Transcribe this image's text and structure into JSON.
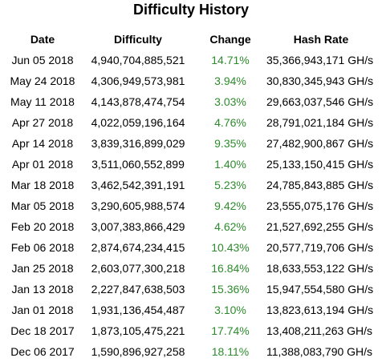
{
  "title": "Difficulty History",
  "columns": {
    "date": "Date",
    "difficulty": "Difficulty",
    "change": "Change",
    "hash_rate": "Hash Rate"
  },
  "colors": {
    "change_positive": "#2e8b2e"
  },
  "rows": [
    {
      "date": "Jun 05 2018",
      "difficulty": "4,940,704,885,521",
      "change": "14.71%",
      "hash_rate": "35,366,943,171 GH/s"
    },
    {
      "date": "May 24 2018",
      "difficulty": "4,306,949,573,981",
      "change": "3.94%",
      "hash_rate": "30,830,345,943 GH/s"
    },
    {
      "date": "May 11 2018",
      "difficulty": "4,143,878,474,754",
      "change": "3.03%",
      "hash_rate": "29,663,037,546 GH/s"
    },
    {
      "date": "Apr 27 2018",
      "difficulty": "4,022,059,196,164",
      "change": "4.76%",
      "hash_rate": "28,791,021,184 GH/s"
    },
    {
      "date": "Apr 14 2018",
      "difficulty": "3,839,316,899,029",
      "change": "9.35%",
      "hash_rate": "27,482,900,867 GH/s"
    },
    {
      "date": "Apr 01 2018",
      "difficulty": "3,511,060,552,899",
      "change": "1.40%",
      "hash_rate": "25,133,150,415 GH/s"
    },
    {
      "date": "Mar 18 2018",
      "difficulty": "3,462,542,391,191",
      "change": "5.23%",
      "hash_rate": "24,785,843,885 GH/s"
    },
    {
      "date": "Mar 05 2018",
      "difficulty": "3,290,605,988,574",
      "change": "9.42%",
      "hash_rate": "23,555,075,176 GH/s"
    },
    {
      "date": "Feb 20 2018",
      "difficulty": "3,007,383,866,429",
      "change": "4.62%",
      "hash_rate": "21,527,692,255 GH/s"
    },
    {
      "date": "Feb 06 2018",
      "difficulty": "2,874,674,234,415",
      "change": "10.43%",
      "hash_rate": "20,577,719,706 GH/s"
    },
    {
      "date": "Jan 25 2018",
      "difficulty": "2,603,077,300,218",
      "change": "16.84%",
      "hash_rate": "18,633,553,122 GH/s"
    },
    {
      "date": "Jan 13 2018",
      "difficulty": "2,227,847,638,503",
      "change": "15.36%",
      "hash_rate": "15,947,554,580 GH/s"
    },
    {
      "date": "Jan 01 2018",
      "difficulty": "1,931,136,454,487",
      "change": "3.10%",
      "hash_rate": "13,823,613,194 GH/s"
    },
    {
      "date": "Dec 18 2017",
      "difficulty": "1,873,105,475,221",
      "change": "17.74%",
      "hash_rate": "13,408,211,263 GH/s"
    },
    {
      "date": "Dec 06 2017",
      "difficulty": "1,590,896,927,258",
      "change": "18.11%",
      "hash_rate": "11,388,083,790 GH/s"
    }
  ]
}
